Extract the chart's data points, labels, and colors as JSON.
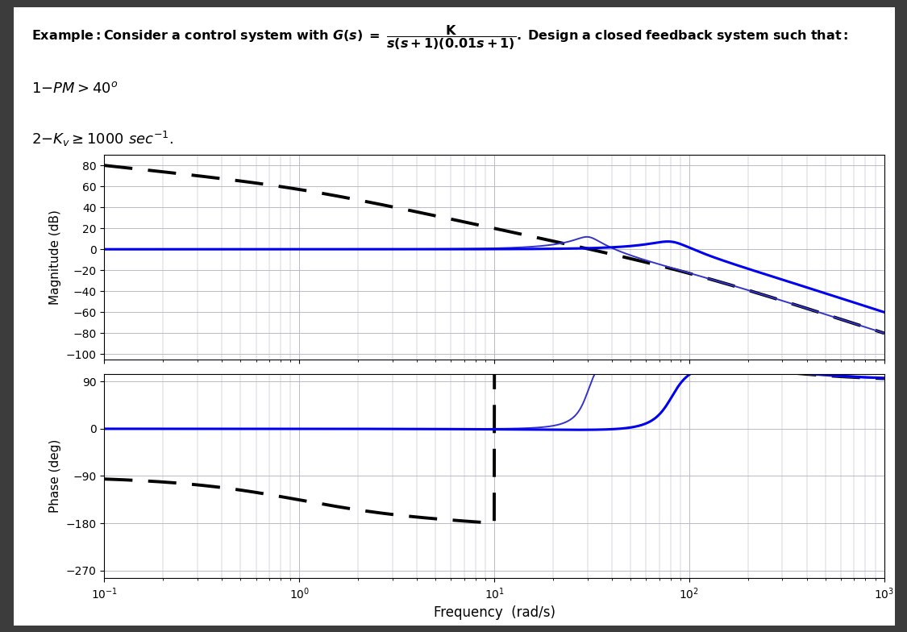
{
  "xlabel": "Frequency  (rad/s)",
  "ylabel_mag": "Magnitude (dB)",
  "ylabel_phase": "Phase (deg)",
  "mag_yticks": [
    -100,
    -80,
    -60,
    -40,
    -20,
    0,
    20,
    40,
    60,
    80
  ],
  "phase_yticks": [
    -270,
    -180,
    -90,
    0,
    90
  ],
  "mag_ylim": [
    -105,
    90
  ],
  "phase_ylim": [
    -285,
    105
  ],
  "grid_color": "#b0b0c0",
  "dashed_color": "#000000",
  "blue_color": "#0000ee",
  "blue_thin_color": "#3333cc",
  "fig_bg": "#3c3c3c"
}
